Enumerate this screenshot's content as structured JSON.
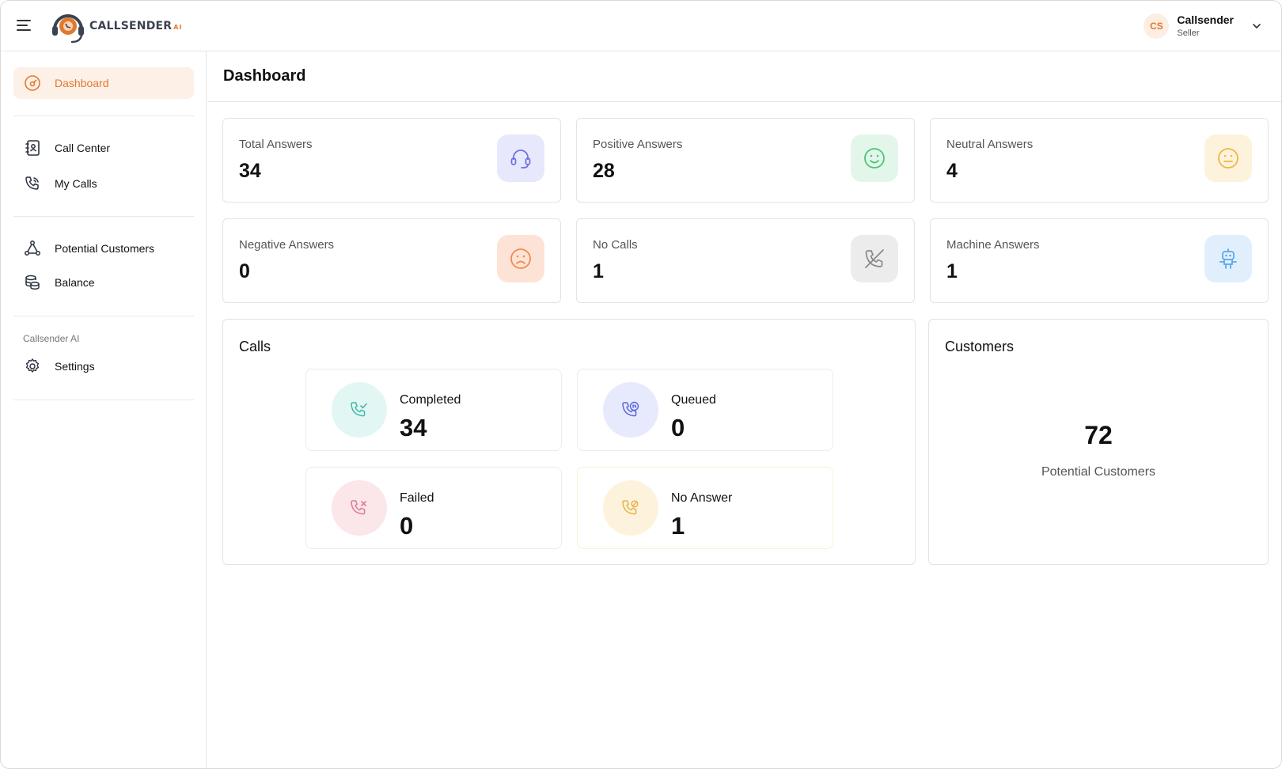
{
  "app": {
    "logo_text": "CALLSENDER",
    "logo_suffix": "AI"
  },
  "user": {
    "initials": "CS",
    "name": "Callsender",
    "role": "Seller"
  },
  "sidebar": {
    "items": [
      {
        "label": "Dashboard",
        "icon": "gauge-icon",
        "active": true
      },
      {
        "label": "Call Center",
        "icon": "contacts-book-icon"
      },
      {
        "label": "My Calls",
        "icon": "phone-calling-icon"
      },
      {
        "label": "Potential Customers",
        "icon": "network-nodes-icon"
      },
      {
        "label": "Balance",
        "icon": "coins-stack-icon"
      },
      {
        "label": "Settings",
        "icon": "gear-icon"
      }
    ],
    "section_label": "Callsender AI"
  },
  "page": {
    "title": "Dashboard"
  },
  "stats": [
    {
      "label": "Total Answers",
      "value": "34",
      "icon": "headset-icon",
      "bg": "#e8e8fc",
      "color": "#6e72e0"
    },
    {
      "label": "Positive Answers",
      "value": "28",
      "icon": "smile-icon",
      "bg": "#e3f6ea",
      "color": "#4cc47a"
    },
    {
      "label": "Neutral Answers",
      "value": "4",
      "icon": "neutral-face-icon",
      "bg": "#fdf3dd",
      "color": "#f2b544"
    },
    {
      "label": "Negative Answers",
      "value": "0",
      "icon": "sad-face-icon",
      "bg": "#fde3d6",
      "color": "#f08a50"
    },
    {
      "label": "No Calls",
      "value": "1",
      "icon": "phone-off-icon",
      "bg": "#ececec",
      "color": "#8a8a8a"
    },
    {
      "label": "Machine Answers",
      "value": "1",
      "icon": "robot-icon",
      "bg": "#e1effd",
      "color": "#5aa8e8"
    }
  ],
  "calls": {
    "title": "Calls",
    "items": [
      {
        "label": "Completed",
        "value": "34",
        "icon": "phone-check-icon",
        "bg": "#e2f7f3",
        "color": "#3fb9a6"
      },
      {
        "label": "Queued",
        "value": "0",
        "icon": "phone-24h-icon",
        "bg": "#e7eafd",
        "color": "#5a66d8"
      },
      {
        "label": "Failed",
        "value": "0",
        "icon": "phone-x-icon",
        "bg": "#fbe6ea",
        "color": "#e07a92"
      },
      {
        "label": "No Answer",
        "value": "1",
        "icon": "phone-block-icon",
        "bg": "#fdf3dc",
        "color": "#e8b24a"
      }
    ]
  },
  "customers": {
    "title": "Customers",
    "value": "72",
    "label": "Potential Customers"
  }
}
